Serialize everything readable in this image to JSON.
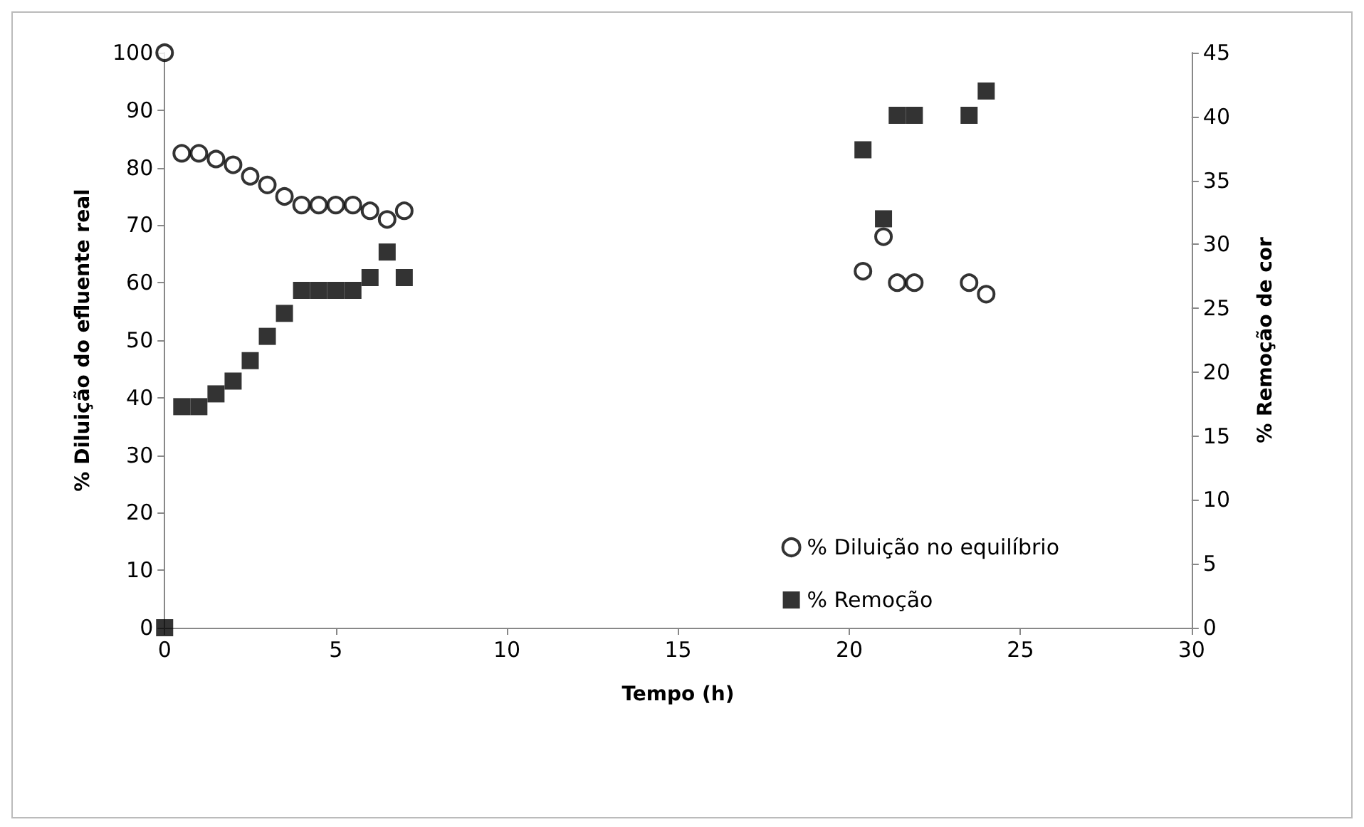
{
  "chart_data": {
    "type": "scatter",
    "xlabel": "Tempo (h)",
    "ylabel": "% Diluição do efluente real",
    "y2label": "% Remoção de cor",
    "xlim": [
      0,
      30
    ],
    "xticks": [
      0,
      5,
      10,
      15,
      20,
      25,
      30
    ],
    "ylim": [
      0,
      100
    ],
    "yticks": [
      0,
      10,
      20,
      30,
      40,
      50,
      60,
      70,
      80,
      90,
      100
    ],
    "y2lim": [
      0,
      45
    ],
    "y2ticks": [
      0,
      5,
      10,
      15,
      20,
      25,
      30,
      35,
      40,
      45
    ],
    "grid": false,
    "legend": "bottom right",
    "series": [
      {
        "name": "% Diluição no equilíbrio",
        "color": "#000000",
        "marker": "circle",
        "x": [
          0,
          0.5,
          1,
          1.5,
          2,
          2.5,
          3,
          3.5,
          4,
          4.5,
          5,
          5.5,
          6,
          6.5,
          7,
          20.4,
          21,
          21.4,
          21.9,
          23.5,
          24
        ],
        "values": [
          100,
          82.5,
          82.5,
          81.5,
          80.5,
          78.5,
          77,
          75,
          73.5,
          73.5,
          73.5,
          73.5,
          72.5,
          71,
          72.5,
          62,
          68,
          60,
          60,
          60,
          58
        ]
      },
      {
        "name": "% Remoção",
        "color": "#000000",
        "marker": "square",
        "axis": "y2",
        "x": [
          0,
          0.5,
          1,
          1.5,
          2,
          2.5,
          3,
          3.5,
          4,
          4.5,
          5,
          5.5,
          6,
          6.5,
          7,
          20.4,
          21,
          21.4,
          21.9,
          23.5,
          24
        ],
        "values": [
          0,
          17.3,
          17.3,
          18.3,
          19.3,
          20.9,
          22.8,
          24.6,
          26.4,
          26.4,
          26.4,
          26.4,
          27.4,
          29.4,
          27.4,
          37.4,
          32,
          40.1,
          40.1,
          40.1,
          42
        ]
      }
    ]
  }
}
